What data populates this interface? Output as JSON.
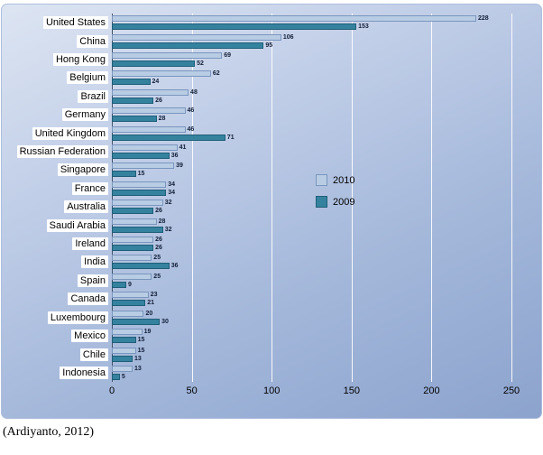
{
  "caption": "(Ardiyanto, 2012)",
  "chart_data": {
    "type": "bar",
    "orientation": "horizontal",
    "title": "",
    "xlabel": "",
    "ylabel": "",
    "categories": [
      "United States",
      "China",
      "Hong Kong",
      "Belgium",
      "Brazil",
      "Germany",
      "United Kingdom",
      "Russian Federation",
      "Singapore",
      "France",
      "Australia",
      "Saudi Arabia",
      "Ireland",
      "India",
      "Spain",
      "Canada",
      "Luxembourg",
      "Mexico",
      "Chile",
      "Indonesia"
    ],
    "series": [
      {
        "name": "2010",
        "color": "#b8cce4",
        "border": "#7a96bd",
        "values": [
          228,
          106,
          69,
          62,
          48,
          46,
          46,
          41,
          39,
          34,
          32,
          28,
          26,
          25,
          25,
          23,
          20,
          19,
          15,
          13
        ]
      },
      {
        "name": "2009",
        "color": "#35829f",
        "border": "#1f5e77",
        "values": [
          153,
          95,
          52,
          24,
          26,
          28,
          71,
          36,
          15,
          34,
          26,
          32,
          26,
          36,
          9,
          21,
          30,
          15,
          13,
          5
        ]
      }
    ],
    "xlim": [
      0,
      250
    ],
    "xticks": [
      0,
      50,
      100,
      150,
      200,
      250
    ],
    "grid": "vertical-white-lines",
    "legend_position": "middle-right",
    "background": "blue-gradient-panel",
    "value_labels": "shown-at-bar-ends"
  }
}
